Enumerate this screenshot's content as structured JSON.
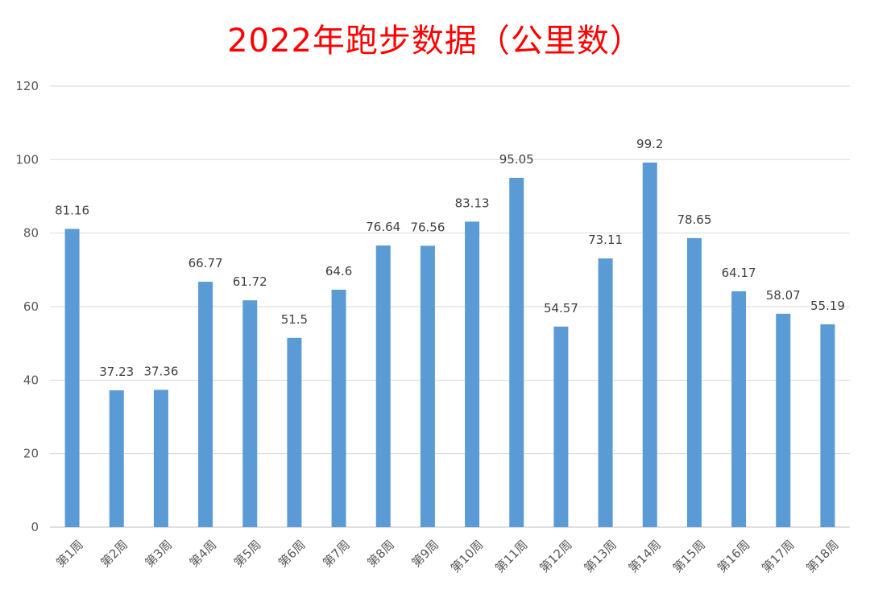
{
  "chart_data": {
    "type": "bar",
    "title": "2022年跑步数据（公里数）",
    "xlabel": "",
    "ylabel": "",
    "ylim": [
      0,
      120
    ],
    "yticks": [
      0,
      20,
      40,
      60,
      80,
      100,
      120
    ],
    "grid": true,
    "legend": "none",
    "categories": [
      "第1周",
      "第2周",
      "第3周",
      "第4周",
      "第5周",
      "第6周",
      "第7周",
      "第8周",
      "第9周",
      "第10周",
      "第11周",
      "第12周",
      "第13周",
      "第14周",
      "第15周",
      "第16周",
      "第17周",
      "第18周"
    ],
    "values": [
      81.16,
      37.23,
      37.36,
      66.77,
      61.72,
      51.5,
      64.6,
      76.64,
      76.56,
      83.13,
      95.05,
      54.57,
      73.11,
      99.2,
      78.65,
      64.17,
      58.07,
      55.19
    ],
    "value_labels": [
      "81.16",
      "37.23",
      "37.36",
      "66.77",
      "61.72",
      "51.5",
      "64.6",
      "76.64",
      "76.56",
      "83.13",
      "95.05",
      "54.57",
      "73.11",
      "99.2",
      "78.65",
      "64.17",
      "58.07",
      "55.19"
    ],
    "colors": {
      "bar": "#5b9bd5",
      "title": "#ff0000",
      "grid": "#d9d9d9",
      "text": "#595959"
    }
  }
}
